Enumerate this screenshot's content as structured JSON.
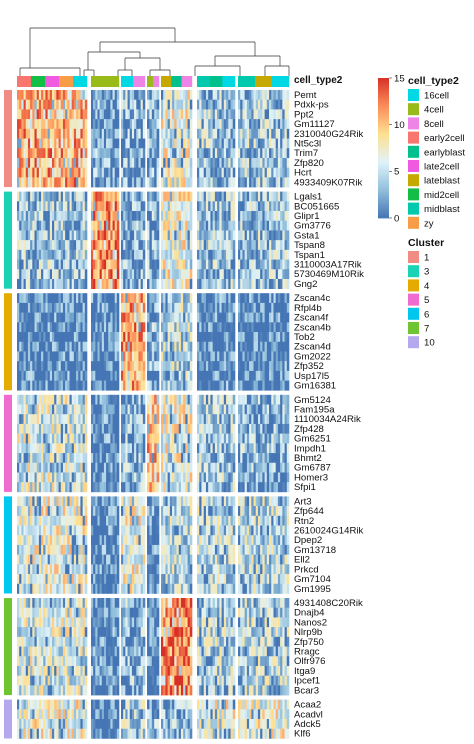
{
  "chart_data": {
    "type": "heatmap",
    "column_annotation_title": "cell_type2",
    "row_annotation_title": "Cluster",
    "color_scale": {
      "min": 0,
      "max": 15,
      "ticks": [
        0,
        5,
        10,
        15
      ],
      "colors": [
        "#4575b4",
        "#91bfdb",
        "#e0f3f8",
        "#fee090",
        "#fc8d59",
        "#d73027"
      ]
    },
    "cell_type_legend": [
      {
        "label": "16cell",
        "color": "#00d9e3"
      },
      {
        "label": "4cell",
        "color": "#99bb19"
      },
      {
        "label": "8cell",
        "color": "#ee84e6"
      },
      {
        "label": "early2cell",
        "color": "#f8766d"
      },
      {
        "label": "earlyblast",
        "color": "#00c08b"
      },
      {
        "label": "late2cell",
        "color": "#f05ae0"
      },
      {
        "label": "lateblast",
        "color": "#c5a900"
      },
      {
        "label": "mid2cell",
        "color": "#12be45"
      },
      {
        "label": "midblast",
        "color": "#00c9ad"
      },
      {
        "label": "zy",
        "color": "#f89d45"
      }
    ],
    "cluster_legend": [
      {
        "label": "1",
        "color": "#f08c84"
      },
      {
        "label": "3",
        "color": "#1ad2b4"
      },
      {
        "label": "4",
        "color": "#e6ab02"
      },
      {
        "label": "5",
        "color": "#f06bd0"
      },
      {
        "label": "6",
        "color": "#00c7ee"
      },
      {
        "label": "7",
        "color": "#6ec531"
      },
      {
        "label": "10",
        "color": "#b6a8ee"
      }
    ],
    "row_groups": [
      {
        "cluster": "1",
        "genes": [
          "Pemt",
          "Pdxk-ps",
          "Ppt2",
          "Gm11127",
          "2310040G24Rik",
          "Nt5c3l",
          "Trim7",
          "Zfp820",
          "Hcrt",
          "4933409K07Rik"
        ]
      },
      {
        "cluster": "3",
        "genes": [
          "Lgals1",
          "BC051665",
          "Glipr1",
          "Gm3776",
          "Gsta1",
          "Tspan8",
          "Tspan1",
          "3110003A17Rik",
          "5730469M10Rik",
          "Gng2"
        ]
      },
      {
        "cluster": "4",
        "genes": [
          "Zscan4c",
          "Rfpl4b",
          "Zscan4f",
          "Zscan4b",
          "Tob2",
          "Zscan4d",
          "Gm2022",
          "Zfp352",
          "Usp17l5",
          "Gm16381"
        ]
      },
      {
        "cluster": "5",
        "genes": [
          "Gm5124",
          "Fam195a",
          "1110034A24Rik",
          "Zfp428",
          "Gm6251",
          "Impdh1",
          "Bhmt2",
          "Gm6787",
          "Homer3",
          "Sfpi1"
        ]
      },
      {
        "cluster": "6",
        "genes": [
          "Art3",
          "Zfp644",
          "Rtn2",
          "2610024G14Rik",
          "Dpep2",
          "Gm13718",
          "Ell2",
          "Prkcd",
          "Gm7104",
          "Gm1995"
        ]
      },
      {
        "cluster": "7",
        "genes": [
          "4931408C20Rik",
          "Dnajb4",
          "Nanos2",
          "Nlrp9b",
          "Zfp750",
          "Rragc",
          "Olfr976",
          "Itga9",
          "Ipcef1",
          "Bcar3"
        ]
      },
      {
        "cluster": "10",
        "genes": [
          "Acaa2",
          "Acadvl",
          "Adck5",
          "Klf6"
        ]
      }
    ],
    "column_groups": [
      {
        "cell_types": [
          "early2cell",
          "mid2cell",
          "late2cell",
          "zy",
          "16cell"
        ]
      },
      {
        "cell_types": [
          "4cell"
        ]
      },
      {
        "cell_types": [
          "16cell",
          "8cell"
        ]
      },
      {
        "cell_types": [
          "4cell",
          "8cell"
        ]
      },
      {
        "cell_types": [
          "lateblast",
          "earlyblast",
          "8cell"
        ]
      },
      {
        "cell_types": [
          "midblast",
          "earlyblast",
          "16cell"
        ]
      },
      {
        "cell_types": [
          "midblast",
          "lateblast",
          "16cell"
        ]
      }
    ]
  }
}
